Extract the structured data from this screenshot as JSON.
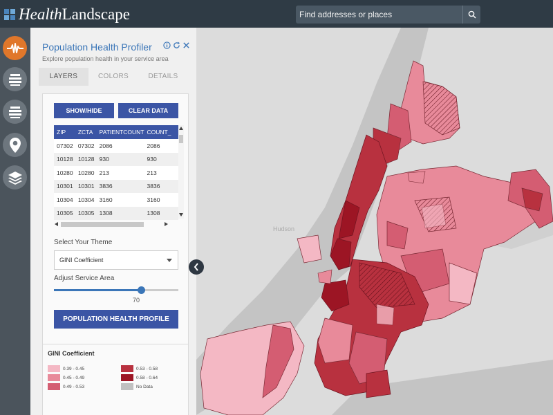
{
  "app": {
    "logo_health": "Health",
    "logo_landscape": "Landscape"
  },
  "search": {
    "placeholder": "Find addresses or places"
  },
  "rail": {
    "items": [
      "activity-icon",
      "layers-stack-icon",
      "layers-stack-icon",
      "location-pin-icon",
      "layers-icon"
    ]
  },
  "panel": {
    "title": "Population Health Profiler",
    "subtitle": "Explore population health in your service area",
    "tabs": [
      {
        "label": "LAYERS"
      },
      {
        "label": "COLORS"
      },
      {
        "label": "DETAILS"
      }
    ],
    "show_hide_label": "SHOW/HIDE",
    "clear_data_label": "CLEAR DATA",
    "table": {
      "columns": [
        "ZIP",
        "ZCTA",
        "PATIENTCOUNT",
        "COUNT_"
      ],
      "rows": [
        [
          "07302",
          "07302",
          "2086",
          "2086"
        ],
        [
          "10128",
          "10128",
          "930",
          "930"
        ],
        [
          "10280",
          "10280",
          "213",
          "213"
        ],
        [
          "10301",
          "10301",
          "3836",
          "3836"
        ],
        [
          "10304",
          "10304",
          "3160",
          "3160"
        ],
        [
          "10305",
          "10305",
          "1308",
          "1308"
        ]
      ]
    },
    "theme_label": "Select Your Theme",
    "theme_value": "GINI Coefficient",
    "service_area_label": "Adjust Service Area",
    "service_area_value": "70",
    "service_area_fraction": 0.7,
    "profile_button": "POPULATION HEALTH PROFILE"
  },
  "legend": {
    "title": "GINI Coefficient",
    "items": [
      {
        "label": "0.39 - 0.45",
        "color": "#f4b8c4"
      },
      {
        "label": "0.45 - 0.49",
        "color": "#e88a9a"
      },
      {
        "label": "0.49 - 0.53",
        "color": "#d45d72"
      },
      {
        "label": "0.53 - 0.58",
        "color": "#b8313f"
      },
      {
        "label": "0.58 - 0.64",
        "color": "#9c1524"
      },
      {
        "label": "No Data",
        "color": "#c0c0c0"
      }
    ]
  },
  "map": {
    "place_label": "Hudson"
  },
  "colors": {
    "accent": "#3b55a5",
    "topbar": "#2f3b45",
    "rail_active": "#e0772b"
  }
}
